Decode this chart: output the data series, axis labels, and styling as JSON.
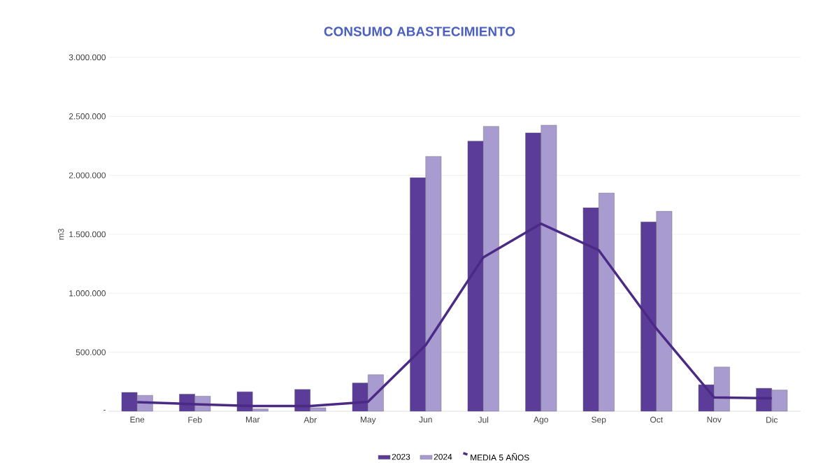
{
  "chart_data": {
    "type": "bar",
    "title": "CONSUMO ABASTECIMIENTO",
    "ylabel": "m3",
    "categories": [
      "Ene",
      "Feb",
      "Mar",
      "Abr",
      "May",
      "Jun",
      "Jul",
      "Ago",
      "Sep",
      "Oct",
      "Nov",
      "Dic"
    ],
    "series": [
      {
        "name": "2023",
        "color": "#5b3c98",
        "values": [
          160000,
          145000,
          165000,
          185000,
          240000,
          1980000,
          2290000,
          2360000,
          1725000,
          1605000,
          225000,
          195000
        ]
      },
      {
        "name": "2024",
        "color": "#a89bd0",
        "values": [
          135000,
          128000,
          20000,
          30000,
          310000,
          2160000,
          2415000,
          2425000,
          1850000,
          1695000,
          375000,
          180000
        ]
      },
      {
        "name": "MEDIA 5 AÑOS",
        "type": "line",
        "color": "#4b2a86",
        "values": [
          77000,
          60000,
          45000,
          45000,
          80000,
          560000,
          1305000,
          1590000,
          1365000,
          700000,
          117000,
          110000
        ]
      }
    ],
    "ylim": [
      0,
      3000000
    ],
    "yticks": [
      {
        "value": 0,
        "label": "-"
      },
      {
        "value": 500000,
        "label": "500.000"
      },
      {
        "value": 1000000,
        "label": "1.000.000"
      },
      {
        "value": 1500000,
        "label": "1.500.000"
      },
      {
        "value": 2000000,
        "label": "2.000.000"
      },
      {
        "value": 2500000,
        "label": "2.500.000"
      },
      {
        "value": 3000000,
        "label": "3.000.000"
      }
    ],
    "grid": "y",
    "legend": "bottom"
  }
}
